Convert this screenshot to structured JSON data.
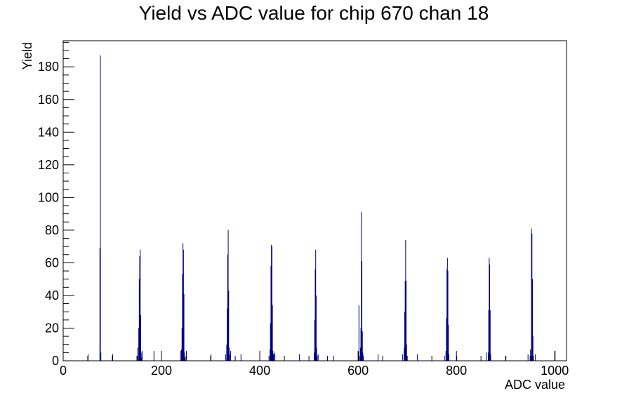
{
  "chart_data": {
    "type": "bar",
    "title": "Yield vs ADC value for chip 670 chan 18",
    "xlabel": "ADC value",
    "ylabel": "Yield",
    "xlim": [
      0,
      1024
    ],
    "ylim": [
      0,
      196
    ],
    "x_ticks": [
      0,
      200,
      400,
      600,
      800,
      1000
    ],
    "y_ticks": [
      0,
      20,
      40,
      60,
      80,
      100,
      120,
      140,
      160,
      180
    ],
    "grid": false,
    "legend": "none",
    "series": [
      {
        "color": "#000080",
        "bins": [
          [
            50,
            4
          ],
          [
            74,
            69
          ],
          [
            75,
            187
          ],
          [
            76,
            5
          ],
          [
            100,
            4
          ],
          [
            150,
            3
          ],
          [
            151,
            8
          ],
          [
            153,
            20
          ],
          [
            154,
            50
          ],
          [
            155,
            64
          ],
          [
            156,
            68
          ],
          [
            157,
            28
          ],
          [
            158,
            5
          ],
          [
            159,
            2
          ],
          [
            160,
            6
          ],
          [
            184,
            6
          ],
          [
            238,
            6
          ],
          [
            240,
            7
          ],
          [
            241,
            20
          ],
          [
            242,
            53
          ],
          [
            243,
            72
          ],
          [
            244,
            68
          ],
          [
            245,
            41
          ],
          [
            246,
            5
          ],
          [
            247,
            2
          ],
          [
            250,
            6
          ],
          [
            300,
            4
          ],
          [
            330,
            4
          ],
          [
            332,
            10
          ],
          [
            333,
            32
          ],
          [
            334,
            65
          ],
          [
            335,
            80
          ],
          [
            336,
            43
          ],
          [
            337,
            8
          ],
          [
            338,
            4
          ],
          [
            340,
            6
          ],
          [
            361,
            4
          ],
          [
            418,
            3
          ],
          [
            420,
            7
          ],
          [
            421,
            23
          ],
          [
            422,
            58
          ],
          [
            423,
            71
          ],
          [
            424,
            70
          ],
          [
            425,
            34
          ],
          [
            426,
            6
          ],
          [
            427,
            4
          ],
          [
            429,
            5
          ],
          [
            430,
            4
          ],
          [
            480,
            4
          ],
          [
            510,
            5
          ],
          [
            511,
            25
          ],
          [
            512,
            56
          ],
          [
            513,
            68
          ],
          [
            514,
            40
          ],
          [
            515,
            8
          ],
          [
            516,
            3
          ],
          [
            518,
            4
          ],
          [
            537,
            3
          ],
          [
            600,
            6
          ],
          [
            601,
            34
          ],
          [
            602,
            3
          ],
          [
            604,
            8
          ],
          [
            605,
            20
          ],
          [
            606,
            91
          ],
          [
            607,
            61
          ],
          [
            608,
            18
          ],
          [
            609,
            5
          ],
          [
            610,
            3
          ],
          [
            640,
            4
          ],
          [
            690,
            4
          ],
          [
            693,
            8
          ],
          [
            694,
            30
          ],
          [
            695,
            49
          ],
          [
            696,
            74
          ],
          [
            697,
            49
          ],
          [
            698,
            10
          ],
          [
            699,
            3
          ],
          [
            720,
            4
          ],
          [
            775,
            3
          ],
          [
            778,
            6
          ],
          [
            779,
            26
          ],
          [
            780,
            56
          ],
          [
            781,
            63
          ],
          [
            782,
            55
          ],
          [
            783,
            22
          ],
          [
            784,
            4
          ],
          [
            800,
            3
          ],
          [
            860,
            5
          ],
          [
            864,
            5
          ],
          [
            865,
            31
          ],
          [
            866,
            63
          ],
          [
            867,
            59
          ],
          [
            868,
            31
          ],
          [
            869,
            4
          ],
          [
            900,
            3
          ],
          [
            945,
            4
          ],
          [
            950,
            7
          ],
          [
            951,
            3
          ],
          [
            952,
            81
          ],
          [
            953,
            78
          ],
          [
            954,
            50
          ],
          [
            955,
            15
          ],
          [
            956,
            3
          ],
          [
            960,
            4
          ],
          [
            1000,
            6
          ]
        ]
      }
    ]
  }
}
